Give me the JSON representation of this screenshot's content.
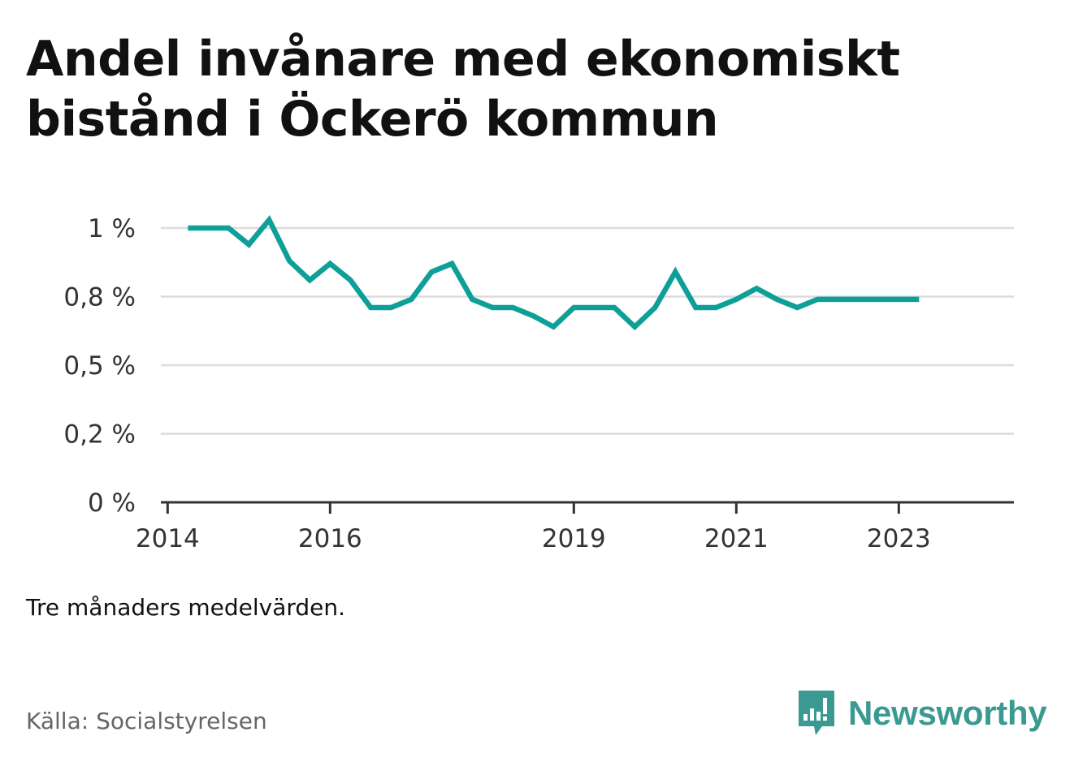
{
  "title": "Andel invånare med ekonomiskt bistånd i Öckerö kommun",
  "note": "Tre månaders medelvärden.",
  "source": "Källa: Socialstyrelsen",
  "brand": {
    "name": "Newsworthy",
    "icon": "newsworthy-logo-icon",
    "color": "#3a9a91"
  },
  "chart_data": {
    "type": "line",
    "title": "Andel invånare med ekonomiskt bistånd i Öckerö kommun",
    "xlabel": "",
    "ylabel": "",
    "x_ticks": [
      {
        "date": "2014-01-01",
        "label": "2014"
      },
      {
        "date": "2016-01-01",
        "label": "2016"
      },
      {
        "date": "2019-01-01",
        "label": "2019"
      },
      {
        "date": "2021-01-01",
        "label": "2021"
      },
      {
        "date": "2023-01-01",
        "label": "2023"
      }
    ],
    "y_ticks": [
      {
        "value": 0,
        "label": "0 %"
      },
      {
        "value": 0.25,
        "label": "0,2 %"
      },
      {
        "value": 0.5,
        "label": "0,5 %"
      },
      {
        "value": 0.75,
        "label": "0,8 %"
      },
      {
        "value": 1.0,
        "label": "1 %"
      }
    ],
    "xlim": [
      "2013-12-01",
      "2024-06-01"
    ],
    "ylim": [
      0,
      1.0
    ],
    "grid": true,
    "legend": "none",
    "color": "#0e9f98",
    "series": [
      {
        "x": [
          "2014-04",
          "2014-07",
          "2014-10",
          "2015-01",
          "2015-04",
          "2015-07",
          "2015-10",
          "2016-01",
          "2016-04",
          "2016-07",
          "2016-10",
          "2017-01",
          "2017-04",
          "2017-07",
          "2017-10",
          "2018-01",
          "2018-04",
          "2018-07",
          "2018-10",
          "2019-01",
          "2019-04",
          "2019-07",
          "2019-10",
          "2020-01",
          "2020-04",
          "2020-07",
          "2020-10",
          "2021-01",
          "2021-04",
          "2021-07",
          "2021-10",
          "2022-01",
          "2022-04",
          "2022-07",
          "2022-10",
          "2023-01",
          "2023-04"
        ],
        "values": [
          1.0,
          1.0,
          1.0,
          0.94,
          1.03,
          0.88,
          0.81,
          0.87,
          0.81,
          0.71,
          0.71,
          0.74,
          0.84,
          0.87,
          0.74,
          0.71,
          0.71,
          0.68,
          0.64,
          0.71,
          0.71,
          0.71,
          0.64,
          0.71,
          0.84,
          0.71,
          0.71,
          0.74,
          0.78,
          0.74,
          0.71,
          0.74,
          0.74,
          0.74,
          0.74,
          0.74,
          0.74
        ]
      }
    ]
  }
}
